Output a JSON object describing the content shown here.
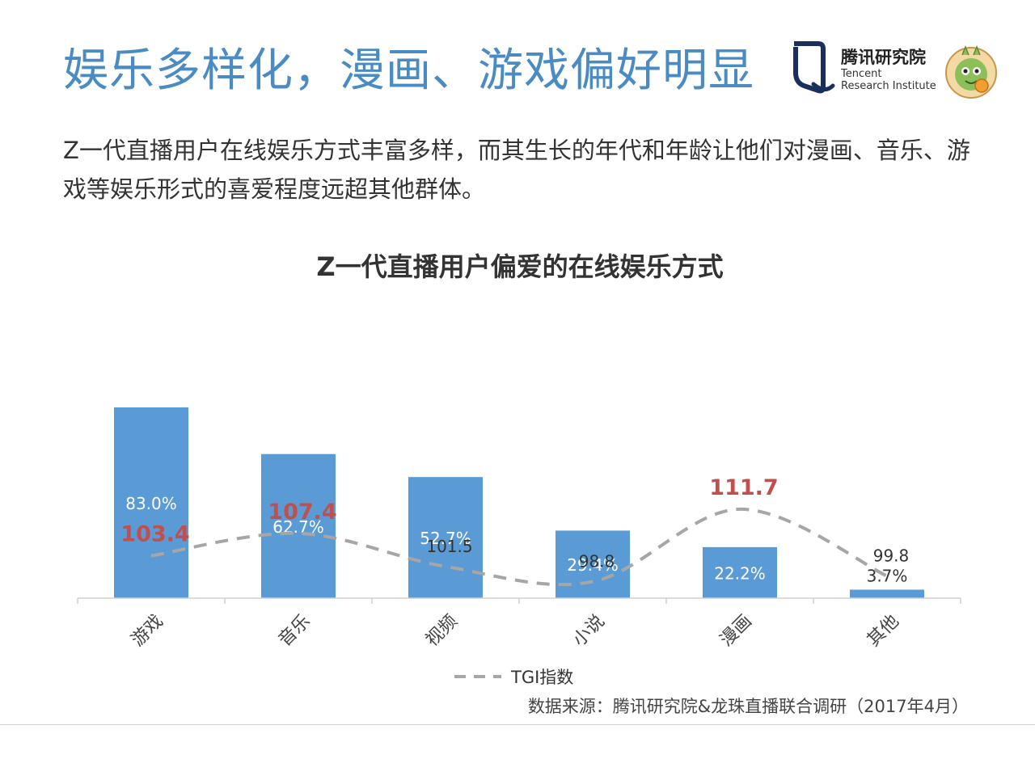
{
  "slide": {
    "title": "娱乐多样化，漫画、游戏偏好明显",
    "intro": "Z一代直播用户在线娱乐方式丰富多样，而其生长的年代和年龄让他们对漫画、音乐、游戏等娱乐形式的喜爱程度远超其他群体。",
    "source": "数据来源：腾讯研究院&龙珠直播联合调研（2017年4月）"
  },
  "logo": {
    "name_cn": "腾讯研究院",
    "name_en_line1": "Tencent",
    "name_en_line2": "Research Institute",
    "mascot_icon": "dragon-mascot-icon"
  },
  "colors": {
    "title": "#4a8bc4",
    "bar": "#5b9bd5",
    "tgi_line": "#a6a6a6",
    "highlight": "#c0504d"
  },
  "chart_data": {
    "type": "bar",
    "title": "Z一代直播用户偏爱的在线娱乐方式",
    "categories": [
      "游戏",
      "音乐",
      "视频",
      "小说",
      "漫画",
      "其他"
    ],
    "series": [
      {
        "type": "bar",
        "values": [
          83.0,
          62.7,
          52.7,
          29.4,
          22.2,
          3.7
        ],
        "labels": [
          "83.0%",
          "62.7%",
          "52.7%",
          "29.4%",
          "22.2%",
          "3.7%"
        ]
      },
      {
        "type": "line",
        "name": "TGI指数",
        "values": [
          103.4,
          107.4,
          101.5,
          98.8,
          111.7,
          99.8
        ],
        "labels": [
          "103.4",
          "107.4",
          "101.5",
          "98.8",
          "111.7",
          "99.8"
        ],
        "highlighted": [
          true,
          true,
          false,
          false,
          true,
          false
        ]
      }
    ],
    "legend": {
      "position": "bottom",
      "entries": [
        "TGI指数"
      ]
    },
    "grid": false
  }
}
